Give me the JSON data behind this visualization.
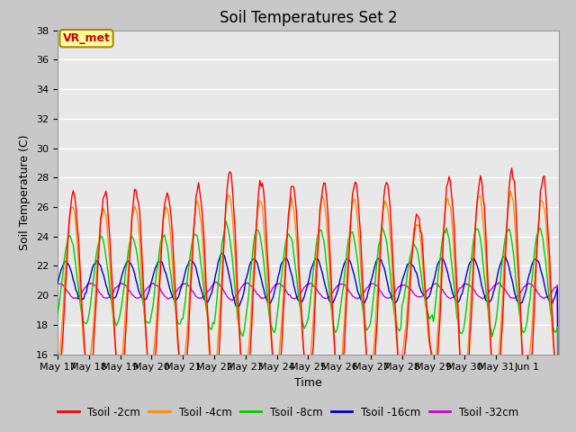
{
  "title": "Soil Temperatures Set 2",
  "xlabel": "Time",
  "ylabel": "Soil Temperature (C)",
  "ylim": [
    16,
    38
  ],
  "series_colors": {
    "Tsoil -2cm": "#ff0000",
    "Tsoil -4cm": "#ff8c00",
    "Tsoil -8cm": "#00cc00",
    "Tsoil -16cm": "#0000cc",
    "Tsoil -32cm": "#cc00cc"
  },
  "annotation_text": "VR_met",
  "annotation_color": "#cc0000",
  "annotation_bg": "#ffff99",
  "annotation_border": "#aa8800",
  "fig_bg": "#c8c8c8",
  "plot_bg": "#e8e8e8",
  "grid_color": "#ffffff",
  "title_fontsize": 12,
  "label_fontsize": 9,
  "tick_fontsize": 8,
  "xtick_labels": [
    "May 17",
    "May 18",
    "May 19",
    "May 20",
    "May 21",
    "May 22",
    "May 23",
    "May 24",
    "May 25",
    "May 26",
    "May 27",
    "May 28",
    "May 29",
    "May 30",
    "May 31",
    "Jun 1"
  ],
  "ytick_values": [
    16,
    18,
    20,
    22,
    24,
    26,
    28,
    30,
    32,
    34,
    36,
    38
  ]
}
